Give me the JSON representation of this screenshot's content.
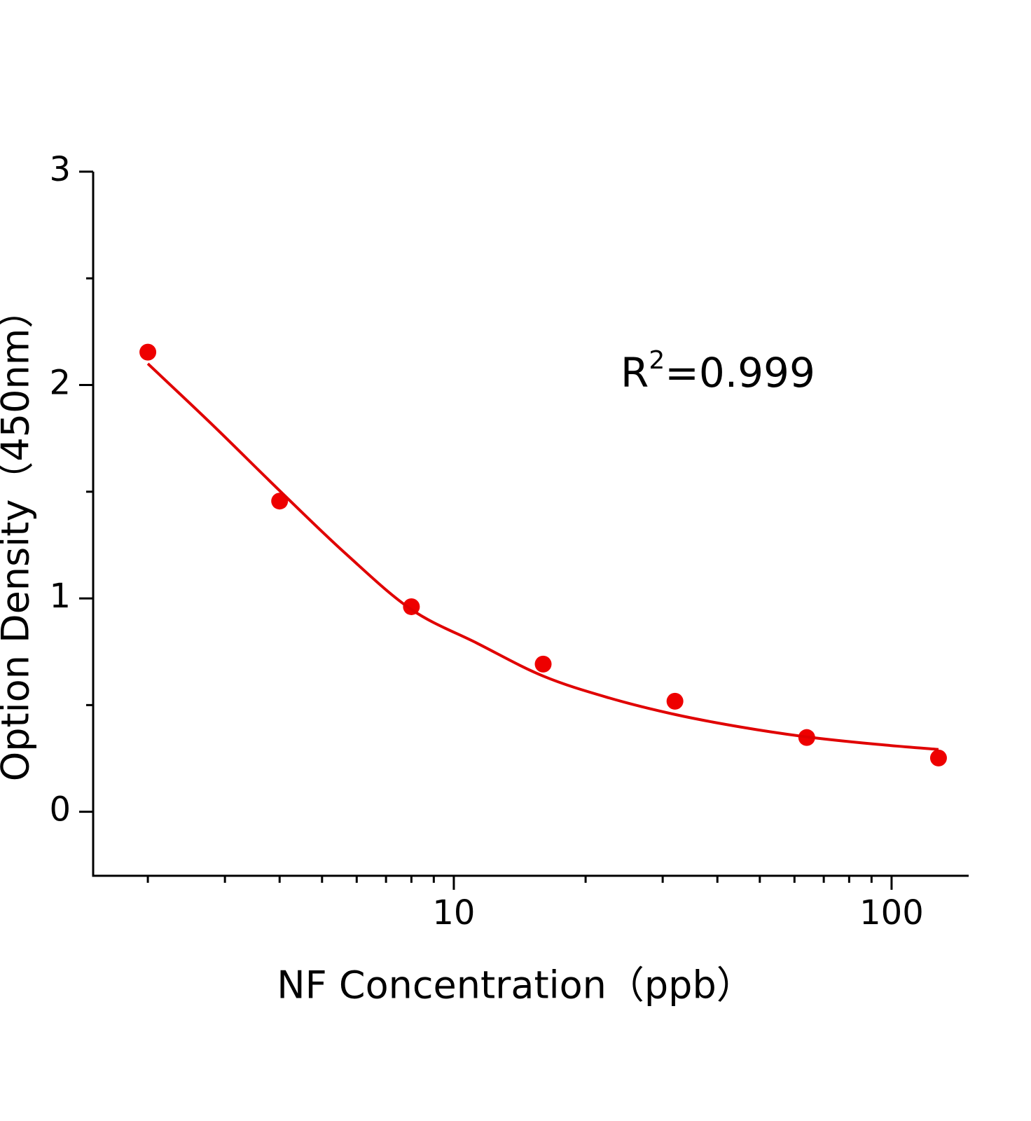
{
  "chart_data": {
    "type": "scatter",
    "x_label": "NF Concentration（ppb）",
    "y_label": "Option Density（450nm）",
    "annotation": {
      "base": "R",
      "sup": "2",
      "rest": "=0.999"
    },
    "x_scale": "log",
    "xlim": [
      1.5,
      150
    ],
    "xticks": [
      10,
      100
    ],
    "xminorticks": [
      2,
      3,
      4,
      5,
      6,
      7,
      8,
      9,
      20,
      30,
      40,
      50,
      60,
      70,
      80,
      90
    ],
    "ylim": [
      -0.3,
      3
    ],
    "yticks": [
      0,
      1,
      2,
      3
    ],
    "yminorticks": [
      0.5,
      1.5,
      2.5
    ],
    "series": [
      {
        "kind": "points",
        "color": "#ee0000",
        "x": [
          2,
          4,
          8,
          16,
          32,
          64,
          128
        ],
        "values": [
          2.154,
          1.456,
          0.961,
          0.692,
          0.518,
          0.348,
          0.252
        ]
      },
      {
        "kind": "fit",
        "color": "#e00000",
        "x": [
          2,
          2.83,
          4,
          5.66,
          8,
          11.3,
          16,
          22.6,
          32,
          45.3,
          64,
          90.5,
          128
        ],
        "values": [
          2.1,
          1.807,
          1.505,
          1.21,
          0.948,
          0.79,
          0.636,
          0.534,
          0.456,
          0.397,
          0.351,
          0.318,
          0.292
        ]
      }
    ]
  }
}
